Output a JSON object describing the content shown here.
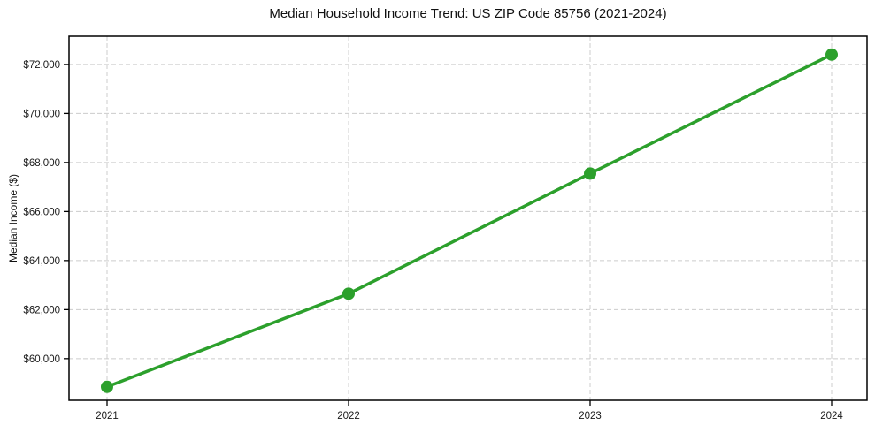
{
  "chart_data": {
    "type": "line",
    "title": "Median Household Income Trend: US ZIP Code 85756 (2021-2024)",
    "xlabel": "",
    "ylabel": "Median Income ($)",
    "x": [
      2021,
      2022,
      2023,
      2024
    ],
    "xtick_labels": [
      "2021",
      "2022",
      "2023",
      "2024"
    ],
    "series": [
      {
        "name": "Median Household Income",
        "values": [
          58850,
          62650,
          67550,
          72400
        ]
      }
    ],
    "ylim": [
      58300,
      73150
    ],
    "yticks": [
      60000,
      62000,
      64000,
      66000,
      68000,
      70000,
      72000
    ],
    "ytick_labels": [
      "$60,000",
      "$62,000",
      "$64,000",
      "$66,000",
      "$68,000",
      "$70,000",
      "$72,000"
    ],
    "grid": true,
    "legend": "none",
    "colors": {
      "line": "#2ca02c",
      "marker": "#2ca02c",
      "grid": "#cccccc",
      "spine": "#000000",
      "text": "#1a1a1a"
    }
  }
}
